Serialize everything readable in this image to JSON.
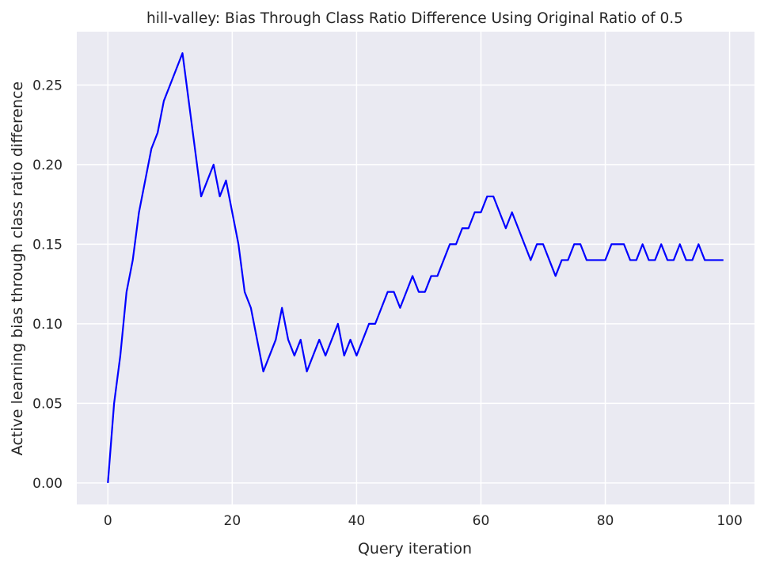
{
  "chart_data": {
    "type": "line",
    "title": "hill-valley: Bias Through Class Ratio Difference Using Original Ratio of 0.5",
    "xlabel": "Query iteration",
    "ylabel": "Active learning bias through class ratio difference",
    "xlim": [
      -5,
      104
    ],
    "ylim": [
      -0.0135,
      0.2835
    ],
    "xticks": [
      0,
      20,
      40,
      60,
      80,
      100
    ],
    "xtick_labels": [
      "0",
      "20",
      "40",
      "60",
      "80",
      "100"
    ],
    "yticks": [
      0.0,
      0.05,
      0.1,
      0.15,
      0.2,
      0.25
    ],
    "ytick_labels": [
      "0.00",
      "0.05",
      "0.10",
      "0.15",
      "0.20",
      "0.25"
    ],
    "grid": true,
    "background_color": "#eaeaf2",
    "grid_color": "#ffffff",
    "series": [
      {
        "color": "#0000ff",
        "x": [
          0,
          1,
          2,
          3,
          4,
          5,
          6,
          7,
          8,
          9,
          10,
          11,
          12,
          13,
          14,
          15,
          16,
          17,
          18,
          19,
          20,
          21,
          22,
          23,
          24,
          25,
          26,
          27,
          28,
          29,
          30,
          31,
          32,
          33,
          34,
          35,
          36,
          37,
          38,
          39,
          40,
          41,
          42,
          43,
          44,
          45,
          46,
          47,
          48,
          49,
          50,
          51,
          52,
          53,
          54,
          55,
          56,
          57,
          58,
          59,
          60,
          61,
          62,
          63,
          64,
          65,
          66,
          67,
          68,
          69,
          70,
          71,
          72,
          73,
          74,
          75,
          76,
          77,
          78,
          79,
          80,
          81,
          82,
          83,
          84,
          85,
          86,
          87,
          88,
          89,
          90,
          91,
          92,
          93,
          94,
          95,
          96,
          97,
          98,
          99
        ],
        "y": [
          0.0,
          0.05,
          0.08,
          0.12,
          0.14,
          0.17,
          0.19,
          0.21,
          0.22,
          0.24,
          0.25,
          0.26,
          0.27,
          0.24,
          0.21,
          0.18,
          0.19,
          0.2,
          0.18,
          0.19,
          0.17,
          0.15,
          0.12,
          0.11,
          0.09,
          0.07,
          0.08,
          0.09,
          0.11,
          0.09,
          0.08,
          0.09,
          0.07,
          0.08,
          0.09,
          0.08,
          0.09,
          0.1,
          0.08,
          0.09,
          0.08,
          0.09,
          0.1,
          0.1,
          0.11,
          0.12,
          0.12,
          0.11,
          0.12,
          0.13,
          0.12,
          0.12,
          0.13,
          0.13,
          0.14,
          0.15,
          0.15,
          0.16,
          0.16,
          0.17,
          0.17,
          0.18,
          0.18,
          0.17,
          0.16,
          0.17,
          0.16,
          0.15,
          0.14,
          0.15,
          0.15,
          0.14,
          0.13,
          0.14,
          0.14,
          0.15,
          0.15,
          0.14,
          0.14,
          0.14,
          0.14,
          0.15,
          0.15,
          0.15,
          0.14,
          0.14,
          0.15,
          0.14,
          0.14,
          0.15,
          0.14,
          0.14,
          0.15,
          0.14,
          0.14,
          0.15,
          0.14,
          0.14,
          0.14,
          0.14
        ]
      }
    ]
  }
}
